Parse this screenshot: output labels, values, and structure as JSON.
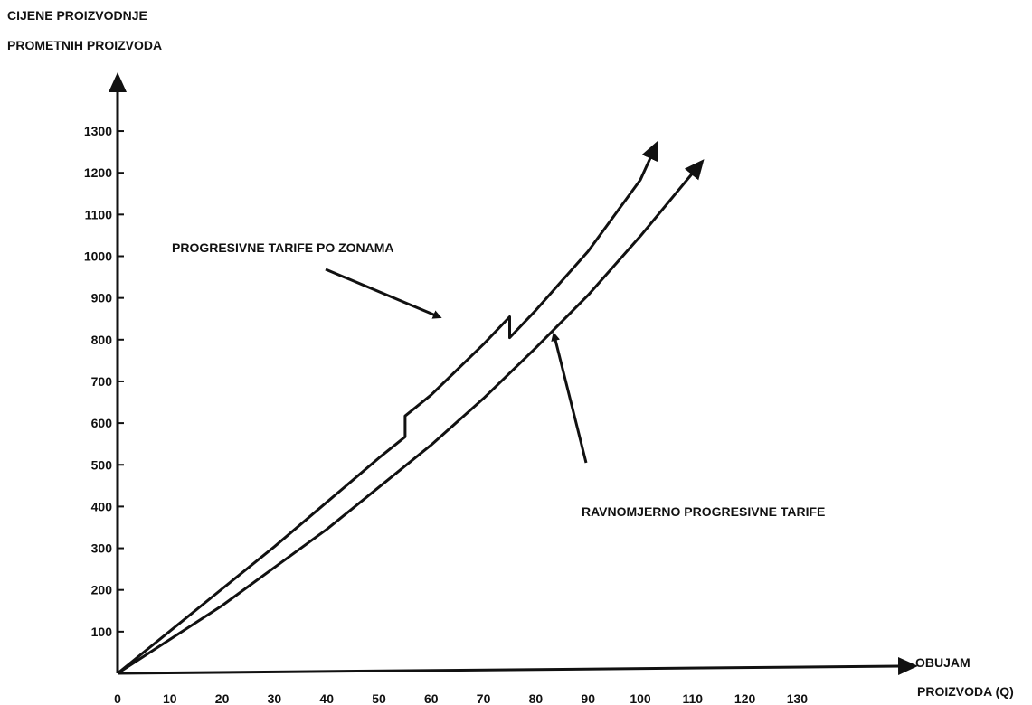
{
  "chart_data": {
    "type": "line",
    "title": "",
    "ylabel_lines": [
      "CIJENE PROIZVODNJE",
      "PROMETNIH PROIZVODA"
    ],
    "xlabel_lines": [
      "OBUJAM",
      "PROIZVODA (Q)"
    ],
    "x_ticks": [
      0,
      10,
      20,
      30,
      40,
      50,
      60,
      70,
      80,
      90,
      100,
      110,
      120,
      130
    ],
    "y_ticks": [
      100,
      200,
      300,
      400,
      500,
      600,
      700,
      800,
      900,
      1000,
      1100,
      1200,
      1300
    ],
    "xlim": [
      0,
      150
    ],
    "ylim": [
      0,
      1400
    ],
    "grid": false,
    "legend": "none",
    "series": [
      {
        "name": "PROGRESIVNE TARIFE PO ZONAMA",
        "x": [
          0,
          10,
          20,
          30,
          40,
          50,
          55,
          55,
          60,
          70,
          75,
          75,
          80,
          90,
          100,
          102
        ],
        "y": [
          0,
          100,
          200,
          300,
          405,
          510,
          560,
          610,
          660,
          780,
          845,
          795,
          860,
          1000,
          1170,
          1225
        ]
      },
      {
        "name": "RAVNOMJERNO PROGRESIVNE TARIFE",
        "x": [
          0,
          10,
          20,
          30,
          40,
          50,
          60,
          70,
          80,
          90,
          100,
          110
        ],
        "y": [
          0,
          80,
          160,
          250,
          340,
          440,
          540,
          650,
          770,
          895,
          1035,
          1185
        ]
      }
    ],
    "annotations": [
      {
        "text": "PROGRESIVNE TARIFE PO ZONAMA",
        "points_to": "PROGRESIVNE TARIFE PO ZONAMA"
      },
      {
        "text": "RAVNOMJERNO PROGRESIVNE TARIFE",
        "points_to": "RAVNOMJERNO PROGRESIVNE TARIFE"
      }
    ]
  }
}
